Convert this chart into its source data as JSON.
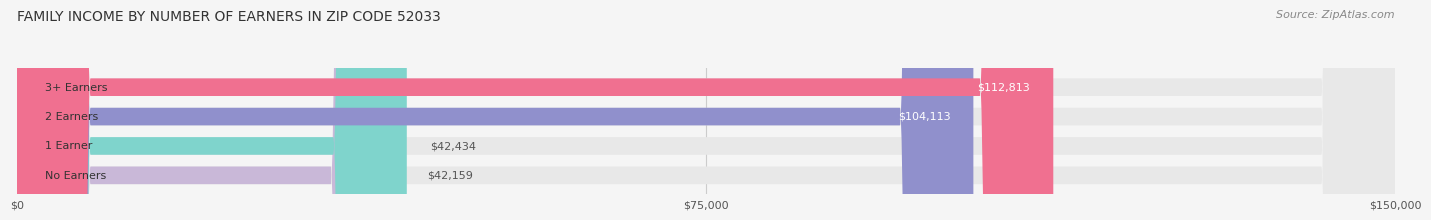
{
  "title": "FAMILY INCOME BY NUMBER OF EARNERS IN ZIP CODE 52033",
  "source": "Source: ZipAtlas.com",
  "categories": [
    "No Earners",
    "1 Earner",
    "2 Earners",
    "3+ Earners"
  ],
  "values": [
    42159,
    42434,
    104113,
    112813
  ],
  "bar_colors": [
    "#c9b8d8",
    "#7fd4cc",
    "#9090cc",
    "#f07090"
  ],
  "bar_bg_color": "#e8e8e8",
  "value_labels": [
    "$42,159",
    "$42,434",
    "$104,113",
    "$112,813"
  ],
  "xlim": [
    0,
    150000
  ],
  "xticks": [
    0,
    75000,
    150000
  ],
  "xtick_labels": [
    "$0",
    "$75,000",
    "$150,000"
  ],
  "background_color": "#f5f5f5",
  "title_fontsize": 10,
  "source_fontsize": 8,
  "label_fontsize": 8,
  "value_fontsize": 8,
  "tick_fontsize": 8,
  "bar_height": 0.6,
  "bar_label_color_inside": "#ffffff",
  "bar_label_color_outside": "#555555",
  "value_threshold": 70000
}
